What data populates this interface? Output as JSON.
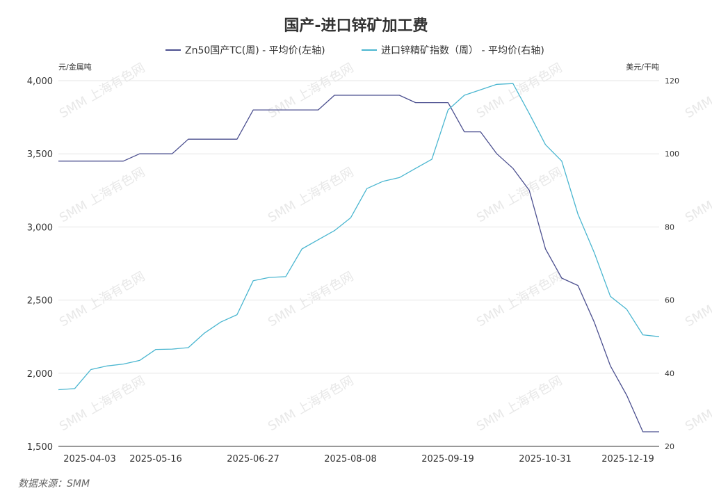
{
  "chart_data": {
    "type": "line",
    "title": "国产-进口锌矿加工费",
    "left_unit": "元/金属吨",
    "right_unit": "美元/干吨",
    "source": "数据来源：SMM",
    "watermark": "SMM 上海有色网",
    "ylim_left": [
      1500,
      4000
    ],
    "yticks_left": [
      1500,
      2000,
      2500,
      3000,
      3500,
      4000
    ],
    "ytick_labels_left": [
      "1,500",
      "2,000",
      "2,500",
      "3,000",
      "3,500",
      "4,000"
    ],
    "ylim_right": [
      20,
      120
    ],
    "yticks_right": [
      20,
      40,
      60,
      80,
      100,
      120
    ],
    "ytick_labels_right": [
      "20",
      "40",
      "60",
      "80",
      "100",
      "120"
    ],
    "xtick_labels": [
      "2025-04-03",
      "2025-05-16",
      "2025-06-27",
      "2025-08-08",
      "2025-09-19",
      "2025-10-31",
      "2025-12-19"
    ],
    "grid": true,
    "legend_position": "top",
    "series": [
      {
        "name": "Zn50国产TC(周) - 平均价(左轴)",
        "axis": "left",
        "color": "#4b4f8f",
        "values": [
          3450,
          3450,
          3450,
          3450,
          3450,
          3500,
          3500,
          3500,
          3600,
          3600,
          3600,
          3600,
          3800,
          3800,
          3800,
          3800,
          3800,
          3900,
          3900,
          3900,
          3900,
          3900,
          3850,
          3850,
          3850,
          3650,
          3650,
          3500,
          3400,
          3250,
          2850,
          2650,
          2600,
          2350,
          2050,
          1850,
          1600,
          1600
        ]
      },
      {
        "name": "进口锌精矿指数（周） - 平均价(右轴)",
        "axis": "right",
        "color": "#4ab6d0",
        "values": [
          35.5,
          35.8,
          41.0,
          42.0,
          42.5,
          43.5,
          46.5,
          46.6,
          47.0,
          51.0,
          54.0,
          56.0,
          65.3,
          66.2,
          66.4,
          74.0,
          76.5,
          79.0,
          82.5,
          90.5,
          92.5,
          93.5,
          96.0,
          98.5,
          112.0,
          116.0,
          117.5,
          119.0,
          119.2,
          111.0,
          102.5,
          98.0,
          83.5,
          73.0,
          61.0,
          57.5,
          50.5,
          50.0
        ]
      }
    ]
  }
}
